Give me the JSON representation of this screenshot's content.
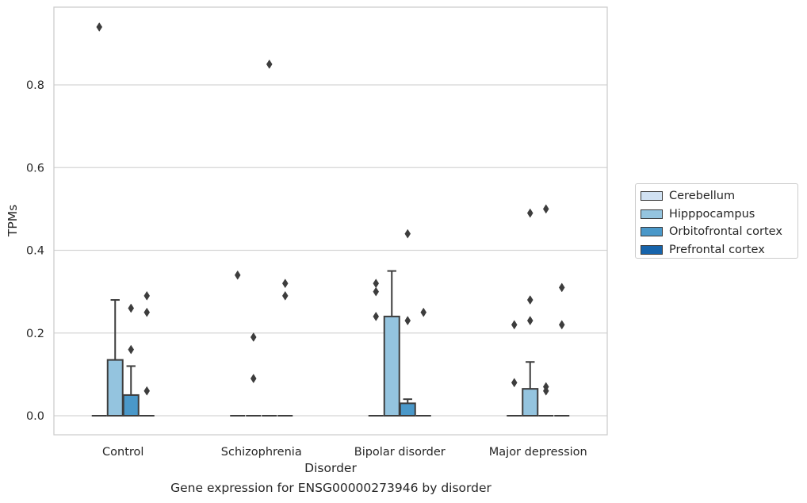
{
  "chart_data": {
    "type": "box",
    "xlabel": "Disorder",
    "ylabel": "TPMs",
    "caption": "Gene expression for ENSG00000273946 by disorder",
    "categories": [
      "Control",
      "Schizophrenia",
      "Bipolar disorder",
      "Major depression"
    ],
    "yticks": [
      "0.0",
      "0.2",
      "0.4",
      "0.6",
      "0.8"
    ],
    "ylim": [
      -0.045,
      0.985
    ],
    "grid": "horizontal",
    "legend_position": "right",
    "series": [
      {
        "name": "Cerebellum",
        "color": "#d0e1f2",
        "boxes": [
          {
            "q1": 0,
            "median": 0,
            "q3": 0,
            "whisker_low": 0,
            "whisker_high": 0,
            "outliers": [
              0.94
            ]
          },
          {
            "q1": 0,
            "median": 0,
            "q3": 0,
            "whisker_low": 0,
            "whisker_high": 0,
            "outliers": [
              0.34
            ]
          },
          {
            "q1": 0,
            "median": 0,
            "q3": 0,
            "whisker_low": 0,
            "whisker_high": 0,
            "outliers": [
              0.32,
              0.3,
              0.24
            ]
          },
          {
            "q1": 0,
            "median": 0,
            "q3": 0,
            "whisker_low": 0,
            "whisker_high": 0,
            "outliers": [
              0.22,
              0.08
            ]
          }
        ]
      },
      {
        "name": "Hipppocampus",
        "color": "#94c4df",
        "boxes": [
          {
            "q1": 0,
            "median": 0,
            "q3": 0.135,
            "whisker_low": 0,
            "whisker_high": 0.28,
            "outliers": []
          },
          {
            "q1": 0,
            "median": 0,
            "q3": 0,
            "whisker_low": 0,
            "whisker_high": 0,
            "outliers": [
              0.19,
              0.09
            ]
          },
          {
            "q1": 0,
            "median": 0,
            "q3": 0.24,
            "whisker_low": 0,
            "whisker_high": 0.35,
            "outliers": []
          },
          {
            "q1": 0,
            "median": 0,
            "q3": 0.065,
            "whisker_low": 0,
            "whisker_high": 0.13,
            "outliers": [
              0.49,
              0.28,
              0.23
            ]
          }
        ]
      },
      {
        "name": "Orbitofrontal cortex",
        "color": "#4a98c9",
        "boxes": [
          {
            "q1": 0,
            "median": 0,
            "q3": 0.05,
            "whisker_low": 0,
            "whisker_high": 0.12,
            "outliers": [
              0.26,
              0.16
            ]
          },
          {
            "q1": 0,
            "median": 0,
            "q3": 0,
            "whisker_low": 0,
            "whisker_high": 0,
            "outliers": [
              0.85
            ]
          },
          {
            "q1": 0,
            "median": 0,
            "q3": 0.03,
            "whisker_low": 0,
            "whisker_high": 0.04,
            "outliers": [
              0.44,
              0.23
            ]
          },
          {
            "q1": 0,
            "median": 0,
            "q3": 0,
            "whisker_low": 0,
            "whisker_high": 0,
            "outliers": [
              0.5,
              0.07,
              0.06
            ]
          }
        ]
      },
      {
        "name": "Prefrontal cortex",
        "color": "#1764ab",
        "boxes": [
          {
            "q1": 0,
            "median": 0,
            "q3": 0,
            "whisker_low": 0,
            "whisker_high": 0,
            "outliers": [
              0.29,
              0.25,
              0.06
            ]
          },
          {
            "q1": 0,
            "median": 0,
            "q3": 0,
            "whisker_low": 0,
            "whisker_high": 0,
            "outliers": [
              0.32,
              0.29
            ]
          },
          {
            "q1": 0,
            "median": 0,
            "q3": 0,
            "whisker_low": 0,
            "whisker_high": 0,
            "outliers": [
              0.25
            ]
          },
          {
            "q1": 0,
            "median": 0,
            "q3": 0,
            "whisker_low": 0,
            "whisker_high": 0,
            "outliers": [
              0.31,
              0.22
            ]
          }
        ]
      }
    ]
  }
}
